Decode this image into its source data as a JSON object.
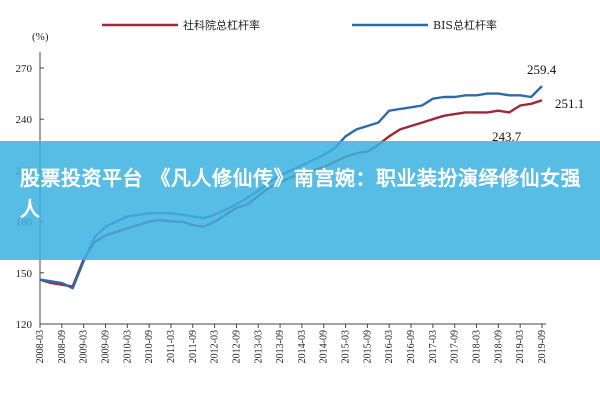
{
  "chart_data": {
    "type": "line",
    "unit_label": "(%)",
    "x": [
      "2008-03",
      "2008-06",
      "2008-09",
      "2008-12",
      "2009-03",
      "2009-06",
      "2009-09",
      "2009-12",
      "2010-03",
      "2010-06",
      "2010-09",
      "2010-12",
      "2011-03",
      "2011-06",
      "2011-09",
      "2011-12",
      "2012-03",
      "2012-06",
      "2012-09",
      "2012-12",
      "2013-03",
      "2013-06",
      "2013-09",
      "2013-12",
      "2014-03",
      "2014-06",
      "2014-09",
      "2014-12",
      "2015-03",
      "2015-06",
      "2015-09",
      "2015-12",
      "2016-03",
      "2016-06",
      "2016-09",
      "2016-12",
      "2017-03",
      "2017-06",
      "2017-09",
      "2017-12",
      "2018-03",
      "2018-06",
      "2018-09",
      "2018-12",
      "2019-03",
      "2019-06",
      "2019-09"
    ],
    "x_tick_labels": [
      "2008-03",
      "2008-09",
      "2009-03",
      "2009-09",
      "2010-03",
      "2010-09",
      "2011-03",
      "2011-09",
      "2012-03",
      "2012-09",
      "2013-03",
      "2013-09",
      "2014-03",
      "2014-09",
      "2015-03",
      "2015-09",
      "2016-03",
      "2016-09",
      "2017-03",
      "2017-09",
      "2018-03",
      "2018-09",
      "2019-03",
      "2019-09"
    ],
    "ylim": [
      120,
      270
    ],
    "yticks": [
      120,
      150,
      180,
      210,
      240,
      270
    ],
    "grid": false,
    "legend_position": "top",
    "series": [
      {
        "name": "社科院总杠杆率",
        "color": "#9b2a3a",
        "values": [
          146,
          144,
          143,
          142,
          158,
          168,
          172,
          174,
          176,
          178,
          180,
          181,
          180,
          180,
          178,
          177,
          180,
          184,
          188,
          190,
          195,
          200,
          203,
          206,
          208,
          210,
          212,
          215,
          218,
          220,
          221,
          225,
          230,
          234,
          236,
          238,
          240,
          242,
          243,
          244,
          244,
          244,
          245,
          244,
          248,
          249,
          251.1
        ]
      },
      {
        "name": "BIS总杠杆率",
        "color": "#2e6aa8",
        "values": [
          146,
          145,
          144,
          141,
          157,
          171,
          177,
          180,
          183,
          184,
          185,
          185,
          185,
          184,
          183,
          182,
          184,
          187,
          190,
          194,
          198,
          203,
          207,
          210,
          213,
          216,
          219,
          223,
          230,
          234,
          236,
          238,
          245,
          246,
          247,
          248,
          252,
          253,
          253,
          254,
          254,
          255,
          255,
          254,
          254,
          253,
          259.4
        ]
      }
    ],
    "annotations": [
      "259.4",
      "251.1",
      "243.7"
    ]
  },
  "banner": {
    "text": "股票投资平台 《凡人修仙传》南宫婉：职业装扮演绎修仙女强人",
    "color": "#3cb2df"
  }
}
